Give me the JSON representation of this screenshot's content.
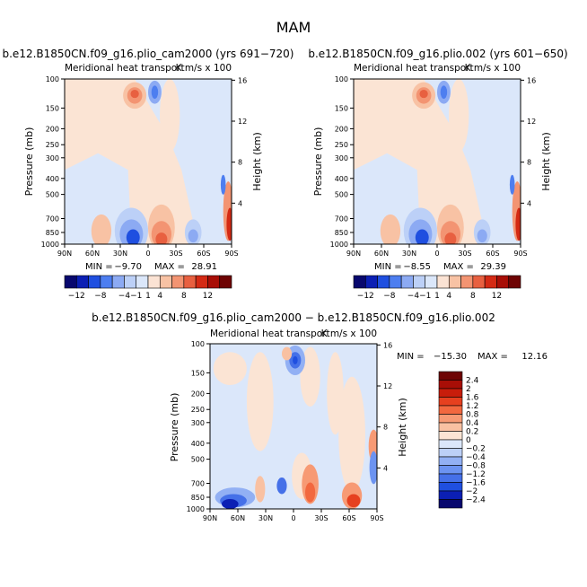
{
  "figure_title": "MAM",
  "chart_data": [
    {
      "type": "heatmap",
      "title": "b.e12.B1850CN.f09_g16.plio_cam2000 (yrs 691−720)",
      "subtitle": "Meridional heat transport",
      "units": "K m/s x 100",
      "ylabel": "Pressure (mb)",
      "ylabel_right": "Height (km)",
      "x_ticks": [
        "90N",
        "60N",
        "30N",
        "0",
        "30S",
        "60S",
        "90S"
      ],
      "y_ticks": [
        100,
        150,
        200,
        250,
        300,
        400,
        500,
        700,
        850,
        1000
      ],
      "y_right_ticks": [
        16,
        12,
        8,
        4
      ],
      "ylim": [
        100,
        1000
      ],
      "min_label": "MIN =",
      "min": "−9.70",
      "max_label": "MAX =",
      "max": "28.91",
      "colorbar_labels": [
        "−12",
        "−8",
        "−4",
        "−1",
        "1",
        "4",
        "8",
        "12"
      ]
    },
    {
      "type": "heatmap",
      "title": "b.e12.B1850CN.f09_g16.plio.002 (yrs 601−650)",
      "subtitle": "Meridional heat transport",
      "units": "K m/s x 100",
      "ylabel": "Pressure (mb)",
      "ylabel_right": "Height (km)",
      "x_ticks": [
        "90N",
        "60N",
        "30N",
        "0",
        "30S",
        "60S",
        "90S"
      ],
      "y_ticks": [
        100,
        150,
        200,
        250,
        300,
        400,
        500,
        700,
        850,
        1000
      ],
      "y_right_ticks": [
        16,
        12,
        8,
        4
      ],
      "ylim": [
        100,
        1000
      ],
      "min_label": "MIN =",
      "min": "−8.55",
      "max_label": "MAX =",
      "max": "29.39",
      "colorbar_labels": [
        "−12",
        "−8",
        "−4",
        "−1",
        "1",
        "4",
        "8",
        "12"
      ]
    },
    {
      "type": "heatmap",
      "title": "b.e12.B1850CN.f09_g16.plio_cam2000 − b.e12.B1850CN.f09_g16.plio.002",
      "subtitle": "Meridional heat transport",
      "units": "K m/s x 100",
      "ylabel": "Pressure (mb)",
      "ylabel_right": "Height (km)",
      "x_ticks": [
        "90N",
        "60N",
        "30N",
        "0",
        "30S",
        "60S",
        "90S"
      ],
      "y_ticks": [
        100,
        150,
        200,
        250,
        300,
        400,
        500,
        700,
        850,
        1000
      ],
      "y_right_ticks": [
        16,
        12,
        8,
        4
      ],
      "ylim": [
        100,
        1000
      ],
      "min_label": "MIN =",
      "min": "−15.30",
      "max_label": "MAX =",
      "max": "12.16",
      "colorbar_labels": [
        "2.4",
        "2",
        "1.6",
        "1.2",
        "0.8",
        "0.4",
        "0.2",
        "0",
        "−0.2",
        "−0.4",
        "−0.8",
        "−1.2",
        "−1.6",
        "−2",
        "−2.4"
      ]
    }
  ],
  "colors": {
    "horizontal_colorbar": [
      "#08086e",
      "#0b1fb4",
      "#1f4fe0",
      "#4d7ef0",
      "#8caaf3",
      "#bcd0f7",
      "#dbe7fa",
      "#fbe3d4",
      "#f8c2a4",
      "#f39472",
      "#e86040",
      "#d42a14",
      "#a80e06",
      "#6e0303"
    ],
    "vertical_colorbar": [
      "#6e0303",
      "#a80e06",
      "#c81d0b",
      "#e6401f",
      "#f2683f",
      "#f79a74",
      "#f9c1a2",
      "#fbe4d4",
      "#dbe7fa",
      "#bcd0f7",
      "#92b0f4",
      "#6c93f1",
      "#4570e8",
      "#1f4fe0",
      "#0b1fb4",
      "#08086e"
    ],
    "neutral_positive": "#fbe4d4",
    "neutral_negative": "#dbe7fa"
  }
}
